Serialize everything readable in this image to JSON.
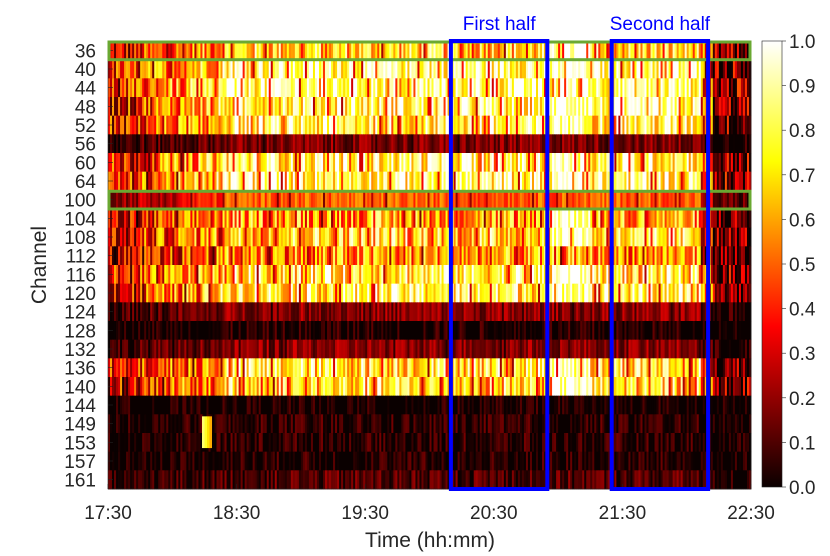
{
  "chart_data": {
    "type": "heatmap",
    "xlabel": "Time (hh:mm)",
    "ylabel": "Channel",
    "x_ticks": [
      "17:30",
      "18:30",
      "19:30",
      "20:30",
      "21:30",
      "22:30"
    ],
    "x_range": [
      "17:30",
      "22:30"
    ],
    "rows": [
      "36",
      "40",
      "44",
      "48",
      "52",
      "56",
      "60",
      "64",
      "100",
      "104",
      "108",
      "112",
      "116",
      "120",
      "124",
      "128",
      "132",
      "136",
      "140",
      "144",
      "149",
      "153",
      "157",
      "161"
    ],
    "row_levels": [
      0.7,
      0.88,
      0.88,
      0.82,
      0.8,
      0.18,
      0.82,
      0.84,
      0.5,
      0.62,
      0.72,
      0.58,
      0.78,
      0.8,
      0.2,
      0.04,
      0.2,
      0.75,
      0.72,
      0.02,
      0.06,
      0.06,
      0.05,
      0.12
    ],
    "colorbar": {
      "colormap": "hot",
      "range": [
        0.0,
        1.0
      ],
      "ticks": [
        "0.0",
        "0.1",
        "0.2",
        "0.3",
        "0.4",
        "0.5",
        "0.6",
        "0.7",
        "0.8",
        "0.9",
        "1.0"
      ]
    },
    "annotations": [
      {
        "label": "First half",
        "color": "#0000ff",
        "time_start": "20:10",
        "time_end": "20:55"
      },
      {
        "label": "Second half",
        "color": "#0000ff",
        "time_start": "21:25",
        "time_end": "22:10"
      }
    ],
    "highlighted_rows": {
      "channels": [
        "36",
        "100"
      ],
      "color": "#6aa832"
    },
    "grid": false
  }
}
